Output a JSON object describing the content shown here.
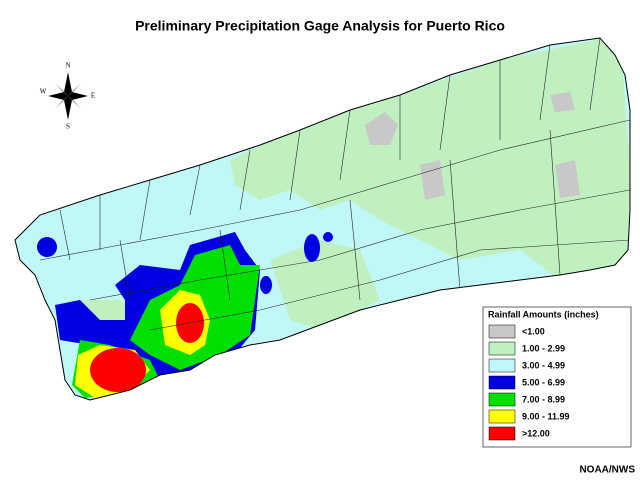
{
  "title": "Preliminary Precipitation Gage Analysis for Puerto Rico",
  "compass": {
    "north": "N",
    "south": "S",
    "east": "E",
    "west": "W"
  },
  "legend": {
    "title": "Rainfall Amounts (inches)",
    "items": [
      {
        "label": "<1.00",
        "color": "#c8c8c8"
      },
      {
        "label": "1.00 - 2.99",
        "color": "#c0f0c0"
      },
      {
        "label": "3.00 - 4.99",
        "color": "#c0f8f8"
      },
      {
        "label": "5.00 - 6.99",
        "color": "#0000e0"
      },
      {
        "label": "7.00 - 8.99",
        "color": "#00e000"
      },
      {
        "label": "9.00 - 11.99",
        "color": "#ffff00"
      },
      {
        "label": ">12.00",
        "color": "#ff0000"
      }
    ]
  },
  "credit": "NOAA/NWS"
}
